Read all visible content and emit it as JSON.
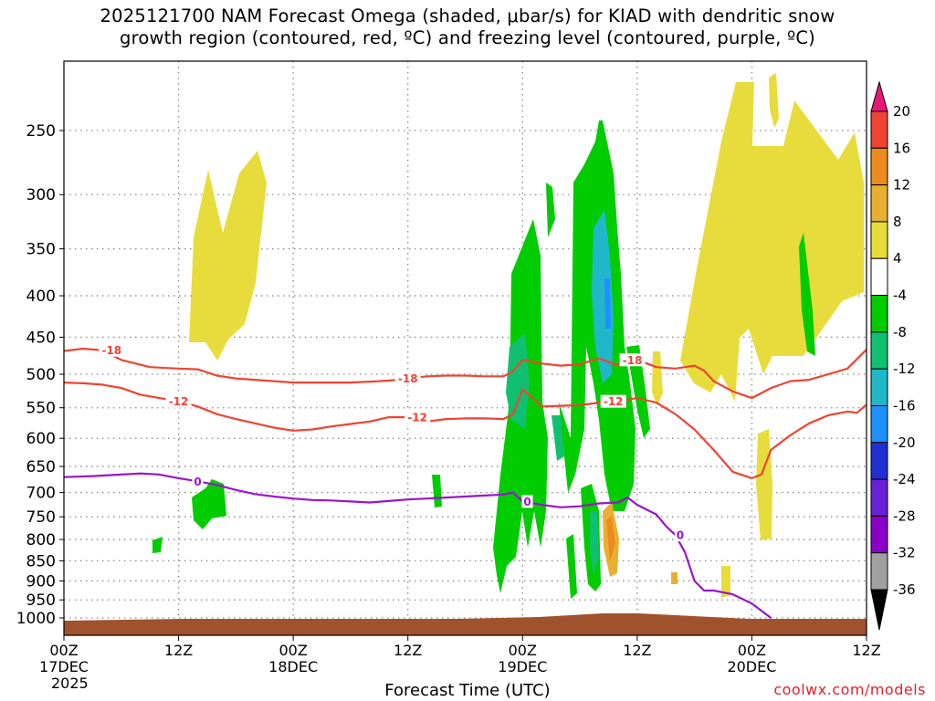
{
  "title_line1": "2025121700 NAM Forecast Omega (shaded, μbar/s) for KIAD with dendritic snow",
  "title_line2": "growth region (contoured, red, ºC) and freezing level (contoured, purple, ºC)",
  "xlabel": "Forecast Time (UTC)",
  "credit": "coolwx.com/models",
  "colors": {
    "red_contour": "#ee4433",
    "purple_contour": "#9a14cc",
    "terrain": "#a0522d",
    "grid": "#888888"
  },
  "chart_data": {
    "type": "heatmap",
    "title": "2025121700 NAM Forecast Omega (shaded, μbar/s) for KIAD with dendritic snow growth region (contoured, red, ºC) and freezing level (contoured, purple, ºC)",
    "xlabel": "Forecast Time (UTC)",
    "ylabel": "",
    "x_unit": "hours after 2025-12-17 00Z",
    "xlim": [
      0,
      84
    ],
    "ylim_hPa": [
      1020,
      200
    ],
    "y_ticks": [
      250,
      300,
      350,
      400,
      450,
      500,
      550,
      600,
      650,
      700,
      750,
      800,
      850,
      900,
      950,
      1000
    ],
    "x_ticks": [
      {
        "hour": 0,
        "l1": "00Z",
        "l2": "17DEC",
        "l3": "2025"
      },
      {
        "hour": 12,
        "l1": "12Z",
        "l2": "",
        "l3": ""
      },
      {
        "hour": 24,
        "l1": "00Z",
        "l2": "18DEC",
        "l3": ""
      },
      {
        "hour": 36,
        "l1": "12Z",
        "l2": "",
        "l3": ""
      },
      {
        "hour": 48,
        "l1": "00Z",
        "l2": "19DEC",
        "l3": ""
      },
      {
        "hour": 60,
        "l1": "12Z",
        "l2": "",
        "l3": ""
      },
      {
        "hour": 72,
        "l1": "00Z",
        "l2": "20DEC",
        "l3": ""
      },
      {
        "hour": 84,
        "l1": "12Z",
        "l2": "",
        "l3": ""
      }
    ],
    "grid": true,
    "colorbar": {
      "levels": [
        -36,
        -32,
        -28,
        -24,
        -20,
        -16,
        -12,
        -8,
        -4,
        4,
        8,
        12,
        16,
        20
      ],
      "colors": [
        "#000000",
        "#a0a0a0",
        "#8a00c8",
        "#6a20d8",
        "#2030d0",
        "#1e90ff",
        "#20b8c8",
        "#10c070",
        "#00cc00",
        "#ffffff",
        "#e8dc3c",
        "#e8b030",
        "#ec8a20",
        "#ee4433",
        "#e81878"
      ]
    },
    "series": [
      {
        "name": "-18",
        "points": [
          [
            0,
            468
          ],
          [
            2,
            465
          ],
          [
            4,
            467
          ],
          [
            6,
            480
          ],
          [
            9,
            490
          ],
          [
            12,
            492
          ],
          [
            14,
            493
          ],
          [
            16,
            502
          ],
          [
            18,
            506
          ],
          [
            20,
            508
          ],
          [
            22,
            510
          ],
          [
            24,
            512
          ],
          [
            27,
            512
          ],
          [
            30,
            512
          ],
          [
            33,
            510
          ],
          [
            35,
            508
          ],
          [
            36,
            506
          ],
          [
            38,
            503
          ],
          [
            40,
            502
          ],
          [
            42,
            502
          ],
          [
            44,
            503
          ],
          [
            46,
            503
          ],
          [
            47,
            496
          ],
          [
            48,
            480
          ],
          [
            50,
            485
          ],
          [
            52,
            488
          ],
          [
            54,
            486
          ],
          [
            56,
            478
          ],
          [
            58,
            488
          ],
          [
            60,
            480
          ],
          [
            62,
            490
          ],
          [
            64,
            492
          ],
          [
            66,
            488
          ],
          [
            67,
            495
          ],
          [
            68,
            510
          ],
          [
            70,
            525
          ],
          [
            72,
            535
          ],
          [
            74,
            520
          ],
          [
            76,
            510
          ],
          [
            78,
            508
          ],
          [
            80,
            500
          ],
          [
            82,
            492
          ],
          [
            84,
            466
          ]
        ],
        "labels": [
          {
            "x": 5,
            "text": "-18"
          },
          {
            "x": 36,
            "text": "-18"
          },
          {
            "x": 59.5,
            "text": "-18"
          }
        ]
      },
      {
        "name": "-12",
        "points": [
          [
            0,
            512
          ],
          [
            2,
            513
          ],
          [
            4,
            515
          ],
          [
            6,
            520
          ],
          [
            8,
            530
          ],
          [
            10,
            535
          ],
          [
            12,
            540
          ],
          [
            14,
            548
          ],
          [
            16,
            560
          ],
          [
            18,
            568
          ],
          [
            20,
            575
          ],
          [
            22,
            582
          ],
          [
            24,
            587
          ],
          [
            26,
            585
          ],
          [
            28,
            580
          ],
          [
            30,
            576
          ],
          [
            32,
            572
          ],
          [
            34,
            565
          ],
          [
            36,
            565
          ],
          [
            38,
            572
          ],
          [
            40,
            568
          ],
          [
            42,
            567
          ],
          [
            44,
            567
          ],
          [
            46,
            568
          ],
          [
            47,
            560
          ],
          [
            48,
            522
          ],
          [
            50,
            548
          ],
          [
            52,
            547
          ],
          [
            54,
            546
          ],
          [
            56,
            542
          ],
          [
            58,
            540
          ],
          [
            60,
            535
          ],
          [
            62,
            542
          ],
          [
            64,
            560
          ],
          [
            66,
            585
          ],
          [
            68,
            620
          ],
          [
            70,
            660
          ],
          [
            72,
            672
          ],
          [
            73,
            665
          ],
          [
            74,
            620
          ],
          [
            76,
            595
          ],
          [
            78,
            575
          ],
          [
            80,
            562
          ],
          [
            82,
            556
          ],
          [
            83,
            558
          ],
          [
            84,
            545
          ]
        ],
        "labels": [
          {
            "x": 12,
            "text": "-12"
          },
          {
            "x": 37,
            "text": "-12"
          },
          {
            "x": 57.5,
            "text": "-12"
          }
        ]
      },
      {
        "name": "0",
        "points": [
          [
            0,
            670
          ],
          [
            3,
            668
          ],
          [
            6,
            665
          ],
          [
            8,
            663
          ],
          [
            10,
            665
          ],
          [
            12,
            672
          ],
          [
            14,
            678
          ],
          [
            16,
            685
          ],
          [
            18,
            695
          ],
          [
            20,
            703
          ],
          [
            22,
            708
          ],
          [
            24,
            712
          ],
          [
            26,
            715
          ],
          [
            28,
            716
          ],
          [
            30,
            718
          ],
          [
            32,
            720
          ],
          [
            34,
            717
          ],
          [
            36,
            714
          ],
          [
            38,
            712
          ],
          [
            40,
            710
          ],
          [
            42,
            708
          ],
          [
            44,
            706
          ],
          [
            46,
            704
          ],
          [
            47,
            700
          ],
          [
            48,
            718
          ],
          [
            50,
            725
          ],
          [
            52,
            730
          ],
          [
            54,
            728
          ],
          [
            56,
            722
          ],
          [
            58,
            720
          ],
          [
            59,
            710
          ],
          [
            60,
            725
          ],
          [
            62,
            745
          ],
          [
            63,
            770
          ],
          [
            64,
            790
          ],
          [
            65,
            830
          ],
          [
            66,
            900
          ],
          [
            67,
            925
          ],
          [
            68,
            925
          ],
          [
            70,
            935
          ],
          [
            72,
            960
          ],
          [
            74,
            1000
          ]
        ],
        "labels": [
          {
            "x": 14,
            "text": "0"
          },
          {
            "x": 48.5,
            "text": "0"
          },
          {
            "x": 64.5,
            "text": "0"
          }
        ]
      }
    ]
  }
}
